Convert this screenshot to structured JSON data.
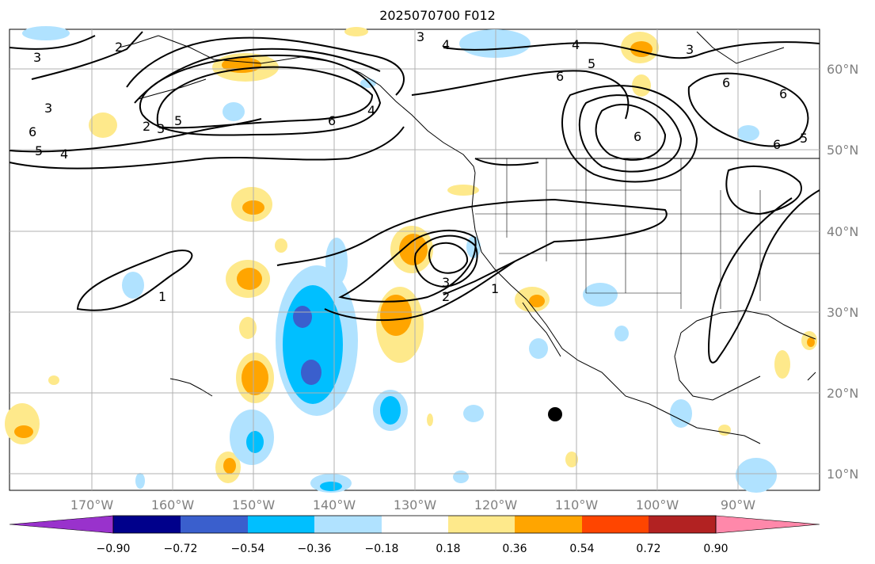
{
  "title": "2025070700 F012",
  "lon_labels": [
    "170°W",
    "160°W",
    "150°W",
    "140°W",
    "130°W",
    "120°W",
    "110°W",
    "100°W",
    "90°W"
  ],
  "lat_labels": [
    "60°N",
    "50°N",
    "40°N",
    "30°N",
    "20°N",
    "10°N"
  ],
  "colorbar": {
    "colors": [
      "#9932cc",
      "#00008b",
      "#3a5fcd",
      "#00bfff",
      "#b0e2ff",
      "#ffffff",
      "#fee98b",
      "#ffa500",
      "#ff4500",
      "#b22222",
      "#ff88aa"
    ],
    "ticks": [
      "−0.90",
      "−0.72",
      "−0.54",
      "−0.36",
      "−0.18",
      "0.18",
      "0.36",
      "0.54",
      "0.72",
      "0.90"
    ]
  },
  "contour_labels": [
    "1",
    "2",
    "3",
    "4",
    "5",
    "6"
  ],
  "colors": {
    "positive_light": "#fee98b",
    "positive_mid": "#ffa500",
    "negative_light": "#b0e2ff",
    "negative_mid": "#00bfff",
    "negative_dark": "#3a5fcd",
    "grid": "#b0b0b0",
    "contour": "#000000"
  },
  "marker": "storm-center-dot"
}
